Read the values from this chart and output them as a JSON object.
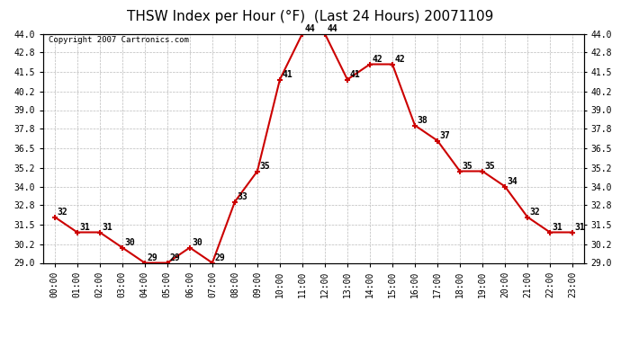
{
  "title": "THSW Index per Hour (°F)  (Last 24 Hours) 20071109",
  "copyright": "Copyright 2007 Cartronics.com",
  "hours": [
    "00:00",
    "01:00",
    "02:00",
    "03:00",
    "04:00",
    "05:00",
    "06:00",
    "07:00",
    "08:00",
    "09:00",
    "10:00",
    "11:00",
    "12:00",
    "13:00",
    "14:00",
    "15:00",
    "16:00",
    "17:00",
    "18:00",
    "19:00",
    "20:00",
    "21:00",
    "22:00",
    "23:00"
  ],
  "values": [
    32,
    31,
    31,
    30,
    29,
    29,
    30,
    29,
    33,
    35,
    41,
    44,
    44,
    41,
    42,
    42,
    38,
    37,
    35,
    35,
    34,
    32,
    31,
    31
  ],
  "ylim_min": 29.0,
  "ylim_max": 44.0,
  "yticks": [
    29.0,
    30.2,
    31.5,
    32.8,
    34.0,
    35.2,
    36.5,
    37.8,
    39.0,
    40.2,
    41.5,
    42.8,
    44.0
  ],
  "line_color": "#cc0000",
  "marker_color": "#cc0000",
  "bg_color": "#ffffff",
  "grid_color": "#bbbbbb",
  "title_fontsize": 11,
  "label_fontsize": 7,
  "annot_fontsize": 7,
  "copyright_fontsize": 6.5
}
